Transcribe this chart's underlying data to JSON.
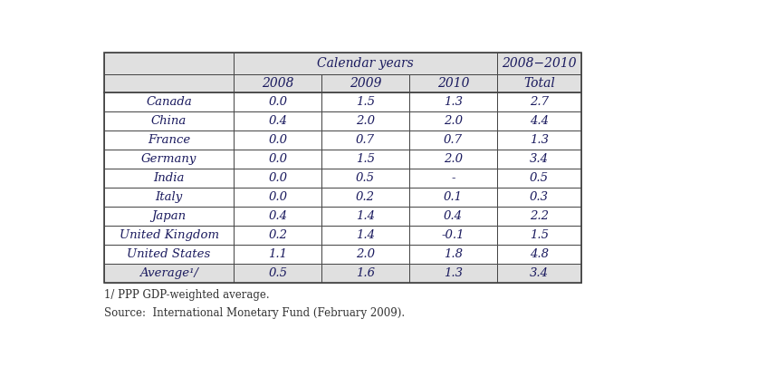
{
  "header_group1": "Calendar years",
  "header_group2": "2008−2010",
  "year_headers": [
    "2008",
    "2009",
    "2010"
  ],
  "total_header": "Total",
  "rows": [
    [
      "Canada",
      "0.0",
      "1.5",
      "1.3",
      "2.7"
    ],
    [
      "China",
      "0.4",
      "2.0",
      "2.0",
      "4.4"
    ],
    [
      "France",
      "0.0",
      "0.7",
      "0.7",
      "1.3"
    ],
    [
      "Germany",
      "0.0",
      "1.5",
      "2.0",
      "3.4"
    ],
    [
      "India",
      "0.0",
      "0.5",
      "-",
      "0.5"
    ],
    [
      "Italy",
      "0.0",
      "0.2",
      "0.1",
      "0.3"
    ],
    [
      "Japan",
      "0.4",
      "1.4",
      "0.4",
      "2.2"
    ],
    [
      "United Kingdom",
      "0.2",
      "1.4",
      "-0.1",
      "1.5"
    ],
    [
      "United States",
      "1.1",
      "2.0",
      "1.8",
      "4.8"
    ],
    [
      "Average¹/",
      "0.5",
      "1.6",
      "1.3",
      "3.4"
    ]
  ],
  "footnote1": "1/ PPP GDP-weighted average.",
  "footnote2": "Source:  International Monetary Fund (February 2009).",
  "header_bg": "#e0e0e0",
  "border_color": "#444444",
  "text_color": "#1a1a5e",
  "fig_bg": "#ffffff"
}
